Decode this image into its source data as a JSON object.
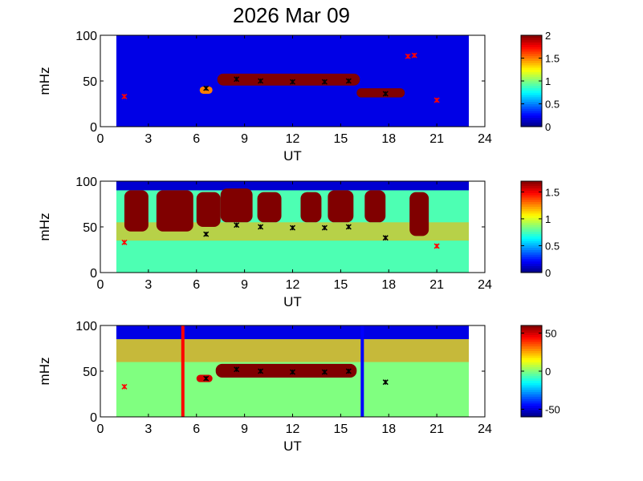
{
  "chart_data": [
    {
      "type": "heatmap",
      "title": "2026 Mar 09",
      "xlabel": "UT",
      "ylabel": "mHz",
      "xlim": [
        0,
        24
      ],
      "ylim": [
        0,
        100
      ],
      "xticks": [
        "0",
        "3",
        "6",
        "9",
        "12",
        "15",
        "18",
        "21",
        "24"
      ],
      "yticks": [
        "0",
        "50",
        "100"
      ],
      "data_x_range": [
        1,
        23
      ],
      "colorbar": {
        "min": 0,
        "max": 2,
        "ticks": [
          "0",
          "0.5",
          "1",
          "1.5",
          "2"
        ]
      },
      "features": [
        {
          "x": [
            7.3,
            16.2
          ],
          "y": [
            45,
            58
          ],
          "value": 2
        },
        {
          "x": [
            16,
            19
          ],
          "y": [
            32,
            42
          ],
          "value": 2
        },
        {
          "x": [
            6.2,
            7
          ],
          "y": [
            36,
            44
          ],
          "value": 1.5
        }
      ],
      "markers": [
        {
          "x": 6.6,
          "y": 42,
          "color": "black"
        },
        {
          "x": 8.5,
          "y": 52,
          "color": "black"
        },
        {
          "x": 10,
          "y": 50,
          "color": "black"
        },
        {
          "x": 12,
          "y": 49,
          "color": "black"
        },
        {
          "x": 14,
          "y": 49,
          "color": "black"
        },
        {
          "x": 15.5,
          "y": 50,
          "color": "black"
        },
        {
          "x": 17.8,
          "y": 36,
          "color": "black"
        },
        {
          "x": 1.5,
          "y": 33,
          "color": "red"
        },
        {
          "x": 19.2,
          "y": 77,
          "color": "red"
        },
        {
          "x": 19.6,
          "y": 78,
          "color": "red"
        },
        {
          "x": 21,
          "y": 29,
          "color": "red"
        }
      ]
    },
    {
      "type": "heatmap",
      "xlabel": "UT",
      "ylabel": "mHz",
      "xlim": [
        0,
        24
      ],
      "ylim": [
        0,
        100
      ],
      "xticks": [
        "0",
        "3",
        "6",
        "9",
        "12",
        "15",
        "18",
        "21",
        "24"
      ],
      "yticks": [
        "0",
        "50",
        "100"
      ],
      "data_x_range": [
        1,
        23
      ],
      "colorbar": {
        "min": 0,
        "max": 1.7,
        "ticks": [
          "0",
          "0.5",
          "1",
          "1.5"
        ]
      },
      "features": [
        {
          "x": [
            1.5,
            3
          ],
          "y": [
            45,
            90
          ],
          "value": 1.7
        },
        {
          "x": [
            3.5,
            5.8
          ],
          "y": [
            45,
            90
          ],
          "value": 1.7
        },
        {
          "x": [
            6,
            7.5
          ],
          "y": [
            50,
            88
          ],
          "value": 1.7
        },
        {
          "x": [
            7.5,
            9.5
          ],
          "y": [
            55,
            92
          ],
          "value": 1.7
        },
        {
          "x": [
            9.8,
            11.3
          ],
          "y": [
            55,
            88
          ],
          "value": 1.7
        },
        {
          "x": [
            12.5,
            13.8
          ],
          "y": [
            55,
            88
          ],
          "value": 1.7
        },
        {
          "x": [
            14.2,
            15.8
          ],
          "y": [
            55,
            90
          ],
          "value": 1.7
        },
        {
          "x": [
            16.5,
            17.8
          ],
          "y": [
            55,
            90
          ],
          "value": 1.7
        },
        {
          "x": [
            19.3,
            20.5
          ],
          "y": [
            40,
            88
          ],
          "value": 1.7
        }
      ],
      "markers": [
        {
          "x": 6.6,
          "y": 42,
          "color": "black"
        },
        {
          "x": 8.5,
          "y": 52,
          "color": "black"
        },
        {
          "x": 10,
          "y": 50,
          "color": "black"
        },
        {
          "x": 12,
          "y": 49,
          "color": "black"
        },
        {
          "x": 14,
          "y": 49,
          "color": "black"
        },
        {
          "x": 15.5,
          "y": 50,
          "color": "black"
        },
        {
          "x": 17.8,
          "y": 38,
          "color": "black"
        },
        {
          "x": 1.5,
          "y": 33,
          "color": "red"
        },
        {
          "x": 21,
          "y": 29,
          "color": "red"
        }
      ]
    },
    {
      "type": "heatmap",
      "xlabel": "UT",
      "ylabel": "mHz",
      "xlim": [
        0,
        24
      ],
      "ylim": [
        0,
        100
      ],
      "xticks": [
        "0",
        "3",
        "6",
        "9",
        "12",
        "15",
        "18",
        "21",
        "24"
      ],
      "yticks": [
        "0",
        "50",
        "100"
      ],
      "data_x_range": [
        1,
        23
      ],
      "colorbar": {
        "min": -60,
        "max": 60,
        "ticks": [
          "-50",
          "0",
          "50"
        ]
      },
      "features": [
        {
          "x": [
            7.2,
            16
          ],
          "y": [
            43,
            58
          ],
          "value": 60
        },
        {
          "x": [
            6,
            7
          ],
          "y": [
            38,
            46
          ],
          "value": 50
        }
      ],
      "vertical_lines": [
        {
          "x": 5.15,
          "color": "red"
        },
        {
          "x": 16.35,
          "color": "blue"
        }
      ],
      "markers": [
        {
          "x": 6.6,
          "y": 42,
          "color": "black"
        },
        {
          "x": 8.5,
          "y": 52,
          "color": "black"
        },
        {
          "x": 10,
          "y": 50,
          "color": "black"
        },
        {
          "x": 12,
          "y": 49,
          "color": "black"
        },
        {
          "x": 14,
          "y": 49,
          "color": "black"
        },
        {
          "x": 15.5,
          "y": 50,
          "color": "black"
        },
        {
          "x": 17.8,
          "y": 38,
          "color": "black"
        },
        {
          "x": 1.5,
          "y": 33,
          "color": "red"
        }
      ]
    }
  ]
}
